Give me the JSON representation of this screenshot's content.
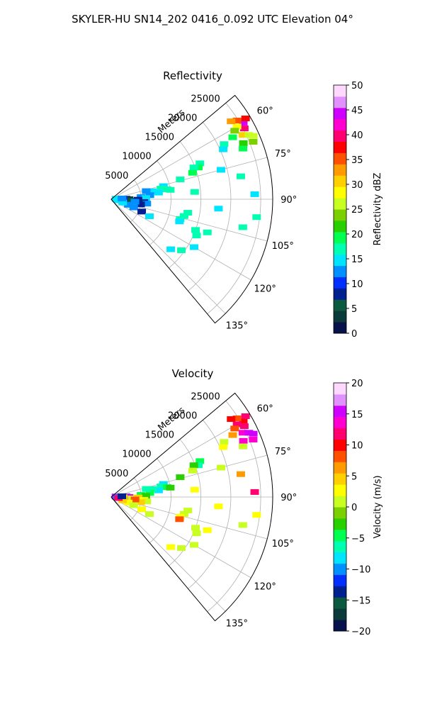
{
  "figure": {
    "suptitle": "SKYLER-HU  SN14_202  0416_0.092 UTC Elevation 04°"
  },
  "chart_data": [
    {
      "type": "heatmap",
      "subtype": "polar-sector",
      "title": "Reflectivity",
      "radial_label": "Meters",
      "radial_ticks": [
        "5000",
        "10000",
        "15000",
        "20000",
        "25000"
      ],
      "radial_tick_values": [
        5000,
        10000,
        15000,
        20000,
        25000
      ],
      "radial_max": 27000,
      "angle_range_deg": [
        50,
        140
      ],
      "angle_ticks": [
        "60°",
        "75°",
        "90°",
        "105°",
        "120°",
        "135°"
      ],
      "angle_tick_values": [
        60,
        75,
        90,
        105,
        120,
        135
      ],
      "grid": true,
      "colorbar": {
        "label": "Reflectivity dBZ",
        "vmin": 0,
        "vmax": 50,
        "ticks": [
          "0",
          "5",
          "10",
          "15",
          "20",
          "25",
          "30",
          "35",
          "40",
          "45",
          "50"
        ],
        "tick_values": [
          0,
          5,
          10,
          15,
          20,
          25,
          30,
          35,
          40,
          45,
          50
        ],
        "colors": [
          "#07124a",
          "#0a3a3a",
          "#0b5a40",
          "#00208f",
          "#0030ff",
          "#0090ff",
          "#00e5ff",
          "#00ffb0",
          "#00ff50",
          "#28d000",
          "#7ad000",
          "#c8ff20",
          "#ffff00",
          "#ffd000",
          "#ff9a00",
          "#ff5000",
          "#ff0000",
          "#ff0070",
          "#ff00d0",
          "#d000ff",
          "#e090ff",
          "#ffd8ff"
        ]
      },
      "cells": [
        [
          60,
          25500,
          45
        ],
        [
          62,
          25200,
          40
        ],
        [
          58,
          24800,
          35
        ],
        [
          64,
          24500,
          30
        ],
        [
          60,
          24300,
          28
        ],
        [
          66,
          26000,
          26
        ],
        [
          61,
          23600,
          24
        ],
        [
          67,
          24000,
          22
        ],
        [
          63,
          22800,
          20
        ],
        [
          69,
          23600,
          19
        ],
        [
          57,
          23900,
          32
        ],
        [
          59,
          26200,
          38
        ],
        [
          65,
          25400,
          27
        ],
        [
          68,
          25600,
          23
        ],
        [
          68,
          16000,
          18
        ],
        [
          70,
          15500,
          20
        ],
        [
          69,
          14800,
          17
        ],
        [
          72,
          14300,
          19
        ],
        [
          74,
          12000,
          16
        ],
        [
          64,
          21000,
          17
        ],
        [
          66,
          20500,
          15
        ],
        [
          76,
          9000,
          15
        ],
        [
          78,
          8500,
          16
        ],
        [
          80,
          9500,
          17
        ],
        [
          82,
          8000,
          14
        ],
        [
          79,
          7000,
          15
        ],
        [
          81,
          10000,
          18
        ],
        [
          84,
          6500,
          13
        ],
        [
          86,
          5000,
          12
        ],
        [
          88,
          5800,
          14
        ],
        [
          77,
          6000,
          13
        ],
        [
          88,
          2500,
          8
        ],
        [
          90,
          3000,
          4
        ],
        [
          92,
          2000,
          10
        ],
        [
          94,
          3500,
          6
        ],
        [
          91,
          4500,
          9
        ],
        [
          89,
          1500,
          11
        ],
        [
          95,
          5500,
          8
        ],
        [
          97,
          6000,
          12
        ],
        [
          100,
          5000,
          7
        ],
        [
          96,
          4000,
          13
        ],
        [
          108,
          3000,
          12
        ],
        [
          110,
          4000,
          13
        ],
        [
          112,
          5500,
          9
        ],
        [
          114,
          7000,
          14
        ],
        [
          106,
          2000,
          15
        ],
        [
          100,
          13000,
          17
        ],
        [
          103,
          12500,
          18
        ],
        [
          106,
          12000,
          16
        ],
        [
          108,
          12000,
          15
        ],
        [
          110,
          15000,
          17
        ],
        [
          113,
          15500,
          16
        ],
        [
          109,
          17000,
          18
        ],
        [
          120,
          16000,
          15
        ],
        [
          126,
          14500,
          16
        ],
        [
          130,
          13000,
          15
        ],
        [
          80,
          22000,
          16
        ],
        [
          88,
          24000,
          15
        ],
        [
          97,
          24500,
          17
        ],
        [
          102,
          22500,
          16
        ],
        [
          75,
          19000,
          15
        ],
        [
          85,
          14000,
          17
        ],
        [
          95,
          18000,
          14
        ],
        [
          84,
          800,
          14
        ],
        [
          92,
          1000,
          15
        ],
        [
          98,
          1200,
          14
        ],
        [
          86,
          1800,
          13
        ]
      ]
    },
    {
      "type": "heatmap",
      "subtype": "polar-sector",
      "title": "Velocity",
      "radial_label": "Meters",
      "radial_ticks": [
        "5000",
        "10000",
        "15000",
        "20000",
        "25000"
      ],
      "radial_tick_values": [
        5000,
        10000,
        15000,
        20000,
        25000
      ],
      "radial_max": 27000,
      "angle_range_deg": [
        50,
        140
      ],
      "angle_ticks": [
        "60°",
        "75°",
        "90°",
        "105°",
        "120°",
        "135°"
      ],
      "angle_tick_values": [
        60,
        75,
        90,
        105,
        120,
        135
      ],
      "grid": true,
      "colorbar": {
        "label": "Velocity (m/s)",
        "vmin": -20,
        "vmax": 20,
        "ticks": [
          "−20",
          "−15",
          "−10",
          "−5",
          "0",
          "5",
          "10",
          "15",
          "20"
        ],
        "tick_values": [
          -20,
          -15,
          -10,
          -5,
          0,
          5,
          10,
          15,
          20
        ],
        "colors": [
          "#07124a",
          "#0a3a3a",
          "#0b5a40",
          "#00208f",
          "#0030ff",
          "#0090ff",
          "#00e5ff",
          "#00ffb0",
          "#00ff50",
          "#28d000",
          "#7ad000",
          "#c8ff20",
          "#ffff00",
          "#ffd000",
          "#ff9a00",
          "#ff5000",
          "#ff0000",
          "#ff0070",
          "#ff00d0",
          "#d000ff",
          "#e090ff",
          "#ffd8ff"
        ]
      },
      "cells": [
        [
          60,
          25500,
          10
        ],
        [
          62,
          25200,
          12
        ],
        [
          58,
          24800,
          8
        ],
        [
          64,
          24500,
          14
        ],
        [
          60,
          24300,
          11
        ],
        [
          66,
          26000,
          15
        ],
        [
          61,
          23600,
          9
        ],
        [
          67,
          24000,
          13
        ],
        [
          63,
          22800,
          6
        ],
        [
          69,
          23600,
          1
        ],
        [
          57,
          23900,
          10
        ],
        [
          59,
          26200,
          12
        ],
        [
          65,
          25400,
          16
        ],
        [
          68,
          25600,
          14
        ],
        [
          68,
          16000,
          -4
        ],
        [
          70,
          15500,
          -6
        ],
        [
          69,
          14800,
          -3
        ],
        [
          72,
          14300,
          0
        ],
        [
          74,
          12000,
          -2
        ],
        [
          64,
          21000,
          1
        ],
        [
          66,
          20500,
          2
        ],
        [
          76,
          9000,
          -8
        ],
        [
          78,
          8500,
          -7
        ],
        [
          80,
          9500,
          -5
        ],
        [
          82,
          8000,
          -9
        ],
        [
          79,
          7000,
          -6
        ],
        [
          81,
          10000,
          -3
        ],
        [
          84,
          6500,
          -5
        ],
        [
          86,
          5000,
          -4
        ],
        [
          88,
          5800,
          -2
        ],
        [
          77,
          6000,
          -7
        ],
        [
          88,
          2500,
          -12
        ],
        [
          90,
          3000,
          14
        ],
        [
          92,
          2000,
          2
        ],
        [
          94,
          3500,
          0
        ],
        [
          91,
          4500,
          4
        ],
        [
          89,
          1500,
          -1
        ],
        [
          95,
          5500,
          3
        ],
        [
          97,
          6000,
          1
        ],
        [
          100,
          5000,
          5
        ],
        [
          96,
          4000,
          9
        ],
        [
          108,
          3000,
          2
        ],
        [
          110,
          4000,
          1
        ],
        [
          112,
          5500,
          3
        ],
        [
          114,
          7000,
          0
        ],
        [
          106,
          2000,
          4
        ],
        [
          100,
          13000,
          1
        ],
        [
          103,
          12500,
          0
        ],
        [
          106,
          12000,
          2
        ],
        [
          108,
          12000,
          9
        ],
        [
          110,
          15000,
          1
        ],
        [
          113,
          15500,
          0
        ],
        [
          109,
          17000,
          2
        ],
        [
          120,
          16000,
          1
        ],
        [
          126,
          14500,
          0
        ],
        [
          130,
          13000,
          2
        ],
        [
          80,
          22000,
          6
        ],
        [
          88,
          24000,
          12
        ],
        [
          97,
          24500,
          3
        ],
        [
          102,
          22500,
          1
        ],
        [
          75,
          19000,
          0
        ],
        [
          85,
          14000,
          3
        ],
        [
          95,
          18000,
          2
        ],
        [
          84,
          800,
          15
        ],
        [
          92,
          1000,
          -10
        ],
        [
          98,
          1200,
          12
        ],
        [
          86,
          1800,
          -13
        ]
      ]
    }
  ]
}
